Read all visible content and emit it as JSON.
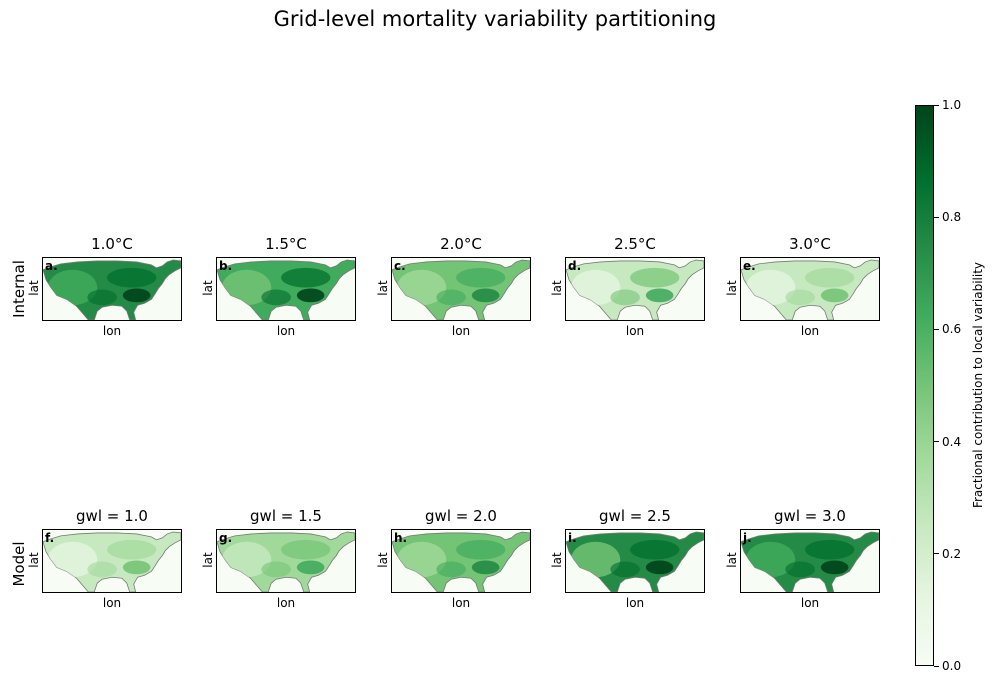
{
  "figure": {
    "title": "Grid-level mortality variability partitioning"
  },
  "rows": [
    {
      "label": "Internal"
    },
    {
      "label": "Model"
    }
  ],
  "axes": {
    "xlabel": "lon",
    "ylabel": "lat"
  },
  "panels": [
    {
      "letter": "a.",
      "title": "1.0°C",
      "row": 0,
      "mean_fraction": 0.75
    },
    {
      "letter": "b.",
      "title": "1.5°C",
      "row": 0,
      "mean_fraction": 0.65
    },
    {
      "letter": "c.",
      "title": "2.0°C",
      "row": 0,
      "mean_fraction": 0.5
    },
    {
      "letter": "d.",
      "title": "2.5°C",
      "row": 0,
      "mean_fraction": 0.3
    },
    {
      "letter": "e.",
      "title": "3.0°C",
      "row": 0,
      "mean_fraction": 0.25
    },
    {
      "letter": "f.",
      "title": "gwl = 1.0",
      "row": 1,
      "mean_fraction": 0.25
    },
    {
      "letter": "g.",
      "title": "gwl = 1.5",
      "row": 1,
      "mean_fraction": 0.35
    },
    {
      "letter": "h.",
      "title": "gwl = 2.0",
      "row": 1,
      "mean_fraction": 0.5
    },
    {
      "letter": "i.",
      "title": "gwl = 2.5",
      "row": 1,
      "mean_fraction": 0.7
    },
    {
      "letter": "j.",
      "title": "gwl = 3.0",
      "row": 1,
      "mean_fraction": 0.75
    }
  ],
  "colorbar": {
    "label": "Fractional contribution to local variability",
    "ticks": [
      "0.0",
      "0.2",
      "0.4",
      "0.6",
      "0.8",
      "1.0"
    ],
    "tick_values": [
      0.0,
      0.2,
      0.4,
      0.6,
      0.8,
      1.0
    ],
    "range": [
      0.0,
      1.0
    ],
    "colormap": "Greens",
    "stops": [
      "#f7fcf5",
      "#e5f5e0",
      "#c7e9c0",
      "#a1d99b",
      "#74c476",
      "#41ab5d",
      "#238b45",
      "#006d2c",
      "#00441b"
    ]
  },
  "chart_data": {
    "type": "heatmap",
    "title": "Grid-level mortality variability partitioning",
    "xlabel": "lon",
    "ylabel": "lat",
    "row_labels": [
      "Internal",
      "Model"
    ],
    "panel_titles": [
      "1.0°C",
      "1.5°C",
      "2.0°C",
      "2.5°C",
      "3.0°C",
      "gwl = 1.0",
      "gwl = 1.5",
      "gwl = 2.0",
      "gwl = 2.5",
      "gwl = 3.0"
    ],
    "panel_letters": [
      "a.",
      "b.",
      "c.",
      "d.",
      "e.",
      "f.",
      "g.",
      "h.",
      "i.",
      "j."
    ],
    "approx_mean_fraction": [
      0.75,
      0.65,
      0.5,
      0.3,
      0.25,
      0.25,
      0.35,
      0.5,
      0.7,
      0.75
    ],
    "colorbar_label": "Fractional contribution to local variability",
    "colorbar_range": [
      0.0,
      1.0
    ],
    "colorbar_ticks": [
      0.0,
      0.2,
      0.4,
      0.6,
      0.8,
      1.0
    ],
    "colormap": "Greens",
    "legend_position": "right"
  }
}
